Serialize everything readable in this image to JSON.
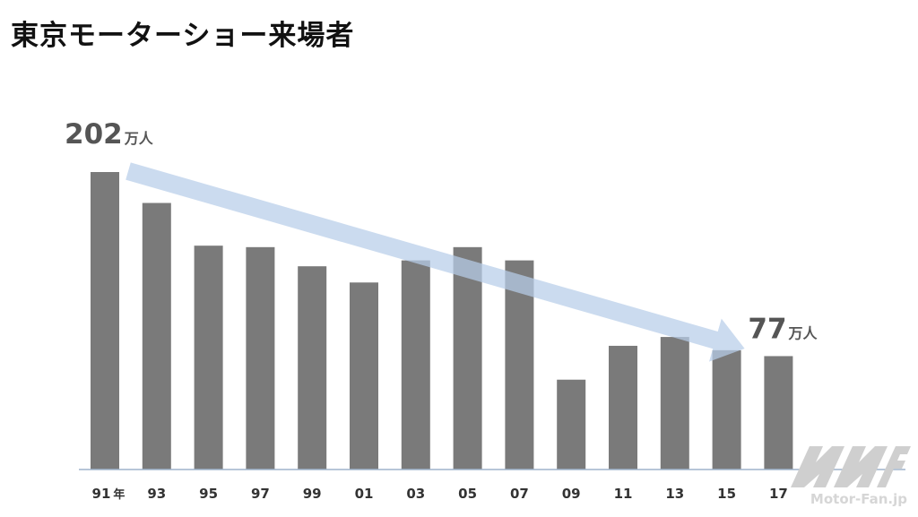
{
  "title": "東京モーターショー来場者",
  "chart_data": {
    "type": "bar",
    "title": "東京モーターショー来場者",
    "xlabel": "",
    "ylabel": "",
    "year_suffix": "年",
    "categories": [
      "91",
      "93",
      "95",
      "97",
      "99",
      "01",
      "03",
      "05",
      "07",
      "09",
      "11",
      "13",
      "15",
      "17"
    ],
    "values": [
      202,
      181,
      152,
      151,
      138,
      127,
      142,
      151,
      142,
      61,
      84,
      90,
      81,
      77
    ],
    "ylim": [
      0,
      210
    ],
    "grid": false,
    "bar_color": "#7a7a7a",
    "arrow_color": "#b7cde9",
    "annotations": [
      {
        "category": "91",
        "value_text": "202",
        "unit": "万人"
      },
      {
        "category": "17",
        "value_text": "77",
        "unit": "万人"
      }
    ]
  },
  "watermark": {
    "logo_name": "motor-fan-logo",
    "text": "Motor-Fan.jp"
  }
}
